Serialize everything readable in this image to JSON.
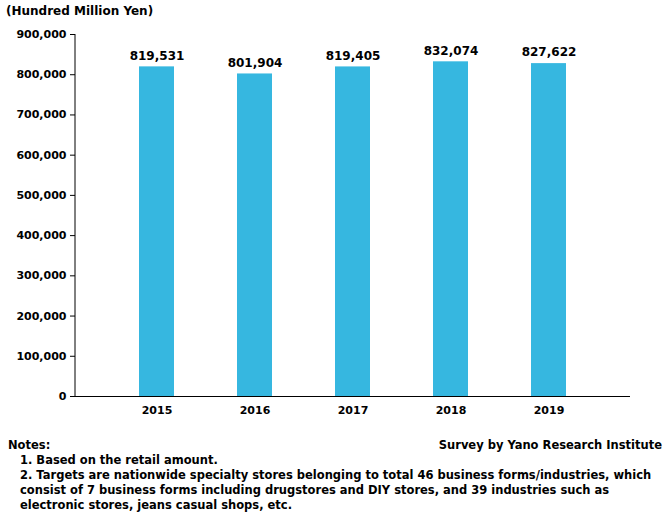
{
  "chart_data": {
    "type": "bar",
    "y_label": "(Hundred Million Yen)",
    "categories": [
      "2015",
      "2016",
      "2017",
      "2018",
      "2019"
    ],
    "values": [
      819531,
      801904,
      819405,
      832074,
      827622
    ],
    "value_labels": [
      "819,531",
      "801,904",
      "819,405",
      "832,074",
      "827,622"
    ],
    "data_labels": true,
    "color": "#36b7e0",
    "ylim": [
      0,
      900000
    ],
    "yticks": [
      0,
      {
        "value": 100000,
        "label": "100,000"
      },
      {
        "value": 200000,
        "label": "200,000"
      },
      {
        "value": 300000,
        "label": "300,000"
      },
      {
        "value": 400000,
        "label": "400,000"
      },
      {
        "value": 500000,
        "label": "500,000"
      },
      {
        "value": 600000,
        "label": "600,000"
      },
      {
        "value": 700000,
        "label": "700,000"
      },
      {
        "value": 800000,
        "label": "800,000"
      },
      {
        "value": 900000,
        "label": "900,000"
      }
    ],
    "grid": false,
    "notes_title": "Notes:",
    "notes": [
      "1. Based on the retail amount.",
      "2. Targets are nationwide specialty stores belonging to total 46 business forms/industries, which consist of 7 business forms including drugstores and DIY stores, and 39 industries such as electronic stores, jeans casual shops, etc."
    ],
    "source": "Survey by Yano Research Institute"
  }
}
